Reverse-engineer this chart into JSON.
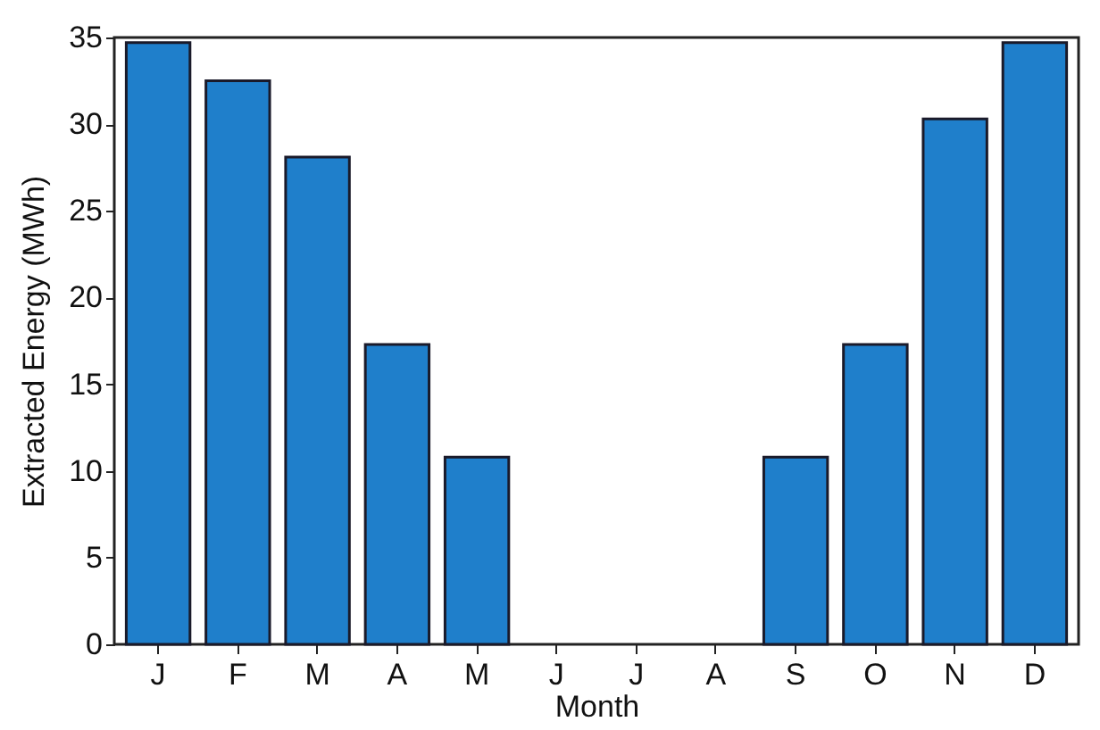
{
  "chart_data": {
    "type": "bar",
    "xlabel": "Month",
    "ylabel": "Extracted Energy (MWh)",
    "categories": [
      "J",
      "F",
      "M",
      "A",
      "M",
      "J",
      "J",
      "A",
      "S",
      "O",
      "N",
      "D"
    ],
    "values": [
      34.7,
      32.5,
      28.1,
      17.3,
      10.8,
      0,
      0,
      0,
      10.8,
      17.3,
      30.3,
      34.7
    ],
    "color": "#1f7fcb",
    "ylim": [
      0,
      35
    ],
    "yticks": [
      0,
      5,
      10,
      15,
      20,
      25,
      30,
      35
    ],
    "grid": false
  }
}
